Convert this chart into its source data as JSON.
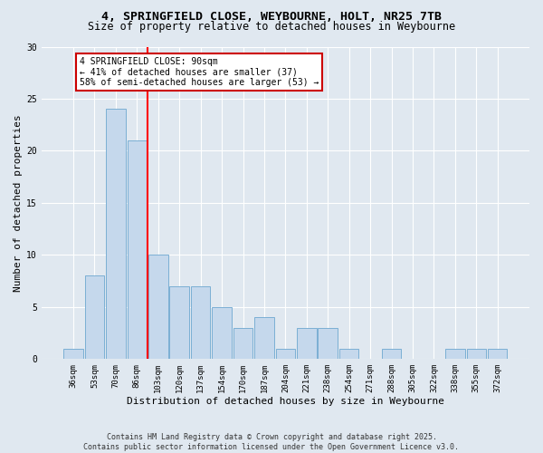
{
  "title_line1": "4, SPRINGFIELD CLOSE, WEYBOURNE, HOLT, NR25 7TB",
  "title_line2": "Size of property relative to detached houses in Weybourne",
  "xlabel": "Distribution of detached houses by size in Weybourne",
  "ylabel": "Number of detached properties",
  "categories": [
    "36sqm",
    "53sqm",
    "70sqm",
    "86sqm",
    "103sqm",
    "120sqm",
    "137sqm",
    "154sqm",
    "170sqm",
    "187sqm",
    "204sqm",
    "221sqm",
    "238sqm",
    "254sqm",
    "271sqm",
    "288sqm",
    "305sqm",
    "322sqm",
    "338sqm",
    "355sqm",
    "372sqm"
  ],
  "values": [
    1,
    8,
    24,
    21,
    10,
    7,
    7,
    5,
    3,
    4,
    1,
    3,
    3,
    1,
    0,
    1,
    0,
    0,
    1,
    1,
    1
  ],
  "bar_color": "#c5d8ec",
  "bar_edge_color": "#7bafd4",
  "red_line_x": 3.5,
  "annotation_line1": "4 SPRINGFIELD CLOSE: 90sqm",
  "annotation_line2": "← 41% of detached houses are smaller (37)",
  "annotation_line3": "58% of semi-detached houses are larger (53) →",
  "annotation_box_color": "#ffffff",
  "annotation_box_edge": "#cc0000",
  "ylim": [
    0,
    30
  ],
  "yticks": [
    0,
    5,
    10,
    15,
    20,
    25,
    30
  ],
  "background_color": "#e0e8f0",
  "footer_line1": "Contains HM Land Registry data © Crown copyright and database right 2025.",
  "footer_line2": "Contains public sector information licensed under the Open Government Licence v3.0.",
  "title_fontsize": 9.5,
  "subtitle_fontsize": 8.5,
  "tick_fontsize": 6.5,
  "axis_label_fontsize": 8,
  "annotation_fontsize": 7,
  "footer_fontsize": 6
}
